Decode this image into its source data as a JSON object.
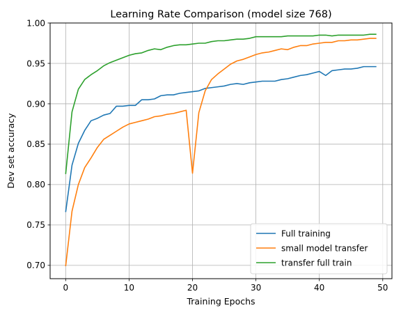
{
  "chart_data": {
    "type": "line",
    "title": "Learning Rate Comparison (model size 768)",
    "xlabel": "Training Epochs",
    "ylabel": "Dev set accuracy",
    "xlim": [
      -2.45,
      51.45
    ],
    "ylim": [
      0.6835,
      1.0
    ],
    "xticks": [
      0,
      10,
      20,
      30,
      40,
      50
    ],
    "yticks": [
      0.7,
      0.75,
      0.8,
      0.85,
      0.9,
      0.95,
      1.0
    ],
    "ytick_labels": [
      "0.70",
      "0.75",
      "0.80",
      "0.85",
      "0.90",
      "0.95",
      "1.00"
    ],
    "grid": true,
    "legend_position": "lower-right",
    "x": [
      0,
      1,
      2,
      3,
      4,
      5,
      6,
      7,
      8,
      9,
      10,
      11,
      12,
      13,
      14,
      15,
      16,
      17,
      18,
      19,
      20,
      21,
      22,
      23,
      24,
      25,
      26,
      27,
      28,
      29,
      30,
      31,
      32,
      33,
      34,
      35,
      36,
      37,
      38,
      39,
      40,
      41,
      42,
      43,
      44,
      45,
      46,
      47,
      48,
      49
    ],
    "series": [
      {
        "name": "Full training",
        "color": "#1f77b4",
        "values": [
          0.766,
          0.824,
          0.851,
          0.867,
          0.879,
          0.882,
          0.886,
          0.888,
          0.897,
          0.897,
          0.898,
          0.898,
          0.905,
          0.905,
          0.906,
          0.91,
          0.911,
          0.911,
          0.913,
          0.914,
          0.915,
          0.916,
          0.919,
          0.92,
          0.921,
          0.922,
          0.924,
          0.925,
          0.924,
          0.926,
          0.927,
          0.928,
          0.928,
          0.928,
          0.93,
          0.931,
          0.933,
          0.935,
          0.936,
          0.938,
          0.94,
          0.935,
          0.941,
          0.942,
          0.943,
          0.943,
          0.944,
          0.946,
          0.946,
          0.946
        ]
      },
      {
        "name": "small model transfer",
        "color": "#ff7f0e",
        "values": [
          0.699,
          0.767,
          0.8,
          0.821,
          0.833,
          0.846,
          0.856,
          0.861,
          0.866,
          0.871,
          0.875,
          0.877,
          0.879,
          0.881,
          0.884,
          0.885,
          0.887,
          0.888,
          0.89,
          0.892,
          0.814,
          0.889,
          0.916,
          0.93,
          0.937,
          0.943,
          0.949,
          0.953,
          0.955,
          0.958,
          0.961,
          0.963,
          0.964,
          0.966,
          0.968,
          0.967,
          0.97,
          0.972,
          0.972,
          0.974,
          0.975,
          0.976,
          0.976,
          0.978,
          0.978,
          0.979,
          0.979,
          0.98,
          0.981,
          0.981
        ]
      },
      {
        "name": "transfer full train",
        "color": "#2ca02c",
        "values": [
          0.813,
          0.89,
          0.918,
          0.93,
          0.936,
          0.941,
          0.947,
          0.951,
          0.954,
          0.957,
          0.96,
          0.962,
          0.963,
          0.966,
          0.968,
          0.967,
          0.97,
          0.972,
          0.973,
          0.973,
          0.974,
          0.975,
          0.975,
          0.977,
          0.978,
          0.978,
          0.979,
          0.98,
          0.98,
          0.981,
          0.983,
          0.983,
          0.983,
          0.983,
          0.983,
          0.984,
          0.984,
          0.984,
          0.984,
          0.984,
          0.985,
          0.985,
          0.984,
          0.985,
          0.985,
          0.985,
          0.985,
          0.985,
          0.986,
          0.986
        ]
      }
    ]
  }
}
